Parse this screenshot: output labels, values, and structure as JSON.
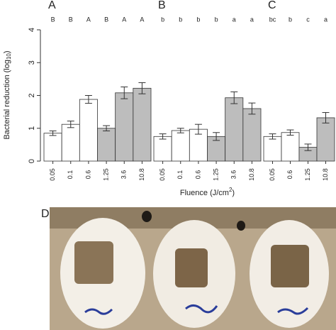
{
  "chart_data": [
    {
      "type": "bar",
      "panel_label": "A",
      "y_label": [
        "Bacterial reduction (log",
        "10",
        ")"
      ],
      "categories": [
        "0.05",
        "0.1",
        "0.6",
        "1.25",
        "3.6",
        "10.8"
      ],
      "values": [
        0.85,
        1.12,
        1.88,
        1.0,
        2.08,
        2.22
      ],
      "errors": [
        0.07,
        0.1,
        0.12,
        0.08,
        0.18,
        0.17
      ],
      "annotations": [
        "B",
        "B",
        "A",
        "B",
        "A",
        "A"
      ],
      "colors": [
        "#ffffff",
        "#ffffff",
        "#ffffff",
        "#bdbdbd",
        "#bdbdbd",
        "#bdbdbd"
      ],
      "ylim": [
        0,
        4
      ],
      "yticks": [
        0,
        1,
        2,
        3,
        4
      ]
    },
    {
      "type": "bar",
      "panel_label": "B",
      "x_label": [
        "Fluence (J/cm",
        "2",
        ")"
      ],
      "categories": [
        "0.05",
        "0.1",
        "0.6",
        "1.25",
        "3.6",
        "10.8"
      ],
      "values": [
        0.75,
        0.93,
        0.97,
        0.75,
        1.93,
        1.6
      ],
      "errors": [
        0.08,
        0.07,
        0.15,
        0.12,
        0.18,
        0.17
      ],
      "annotations": [
        "b",
        "b",
        "b",
        "b",
        "a",
        "a"
      ],
      "colors": [
        "#ffffff",
        "#ffffff",
        "#ffffff",
        "#bdbdbd",
        "#bdbdbd",
        "#bdbdbd"
      ],
      "ylim": [
        0,
        4
      ]
    },
    {
      "type": "bar",
      "panel_label": "C",
      "categories": [
        "0.05",
        "0.6",
        "1.25",
        "10.8"
      ],
      "values": [
        0.75,
        0.87,
        0.42,
        1.32
      ],
      "errors": [
        0.08,
        0.08,
        0.1,
        0.16
      ],
      "annotations": [
        "bc",
        "b",
        "c",
        "a"
      ],
      "colors": [
        "#ffffff",
        "#ffffff",
        "#bdbdbd",
        "#bdbdbd"
      ],
      "ylim": [
        0,
        4
      ]
    }
  ],
  "photo": {
    "label": "D"
  }
}
